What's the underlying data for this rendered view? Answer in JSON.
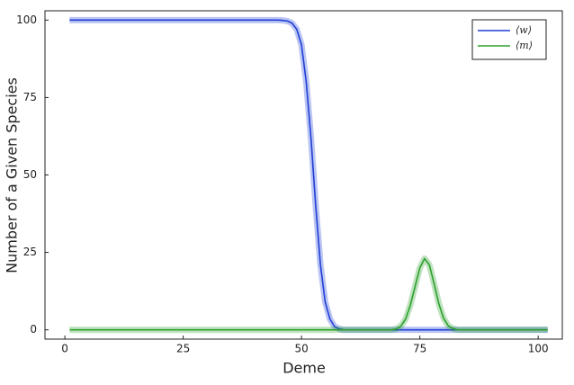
{
  "chart_data": {
    "type": "line",
    "xlabel": "Deme",
    "ylabel": "Number of a Given Species",
    "xlim": [
      -4.2,
      105.1
    ],
    "ylim": [
      -3,
      103
    ],
    "xticks": [
      0,
      25,
      50,
      75,
      100
    ],
    "yticks": [
      0,
      25,
      50,
      75,
      100
    ],
    "grid": false,
    "legend": "top-right",
    "series": [
      {
        "name": "⟨w⟩",
        "color": "#1f3fd6",
        "x": [
          1,
          45,
          46,
          47,
          48,
          49,
          50,
          51,
          52,
          53,
          54,
          55,
          56,
          57,
          58,
          59,
          102
        ],
        "values": [
          100,
          100,
          99.9,
          99.7,
          99,
          97,
          92,
          80,
          62,
          40,
          21,
          9,
          3.5,
          1,
          0.3,
          0,
          0
        ]
      },
      {
        "name": "⟨m⟩",
        "color": "#2ca02c",
        "x": [
          1,
          69,
          70,
          71,
          72,
          73,
          74,
          75,
          76,
          77,
          78,
          79,
          80,
          81,
          82,
          83,
          102
        ],
        "values": [
          0,
          0,
          0.3,
          1.2,
          3.5,
          8,
          14,
          20,
          23,
          21,
          15,
          8.5,
          3.8,
          1.3,
          0.4,
          0,
          0
        ]
      }
    ]
  }
}
